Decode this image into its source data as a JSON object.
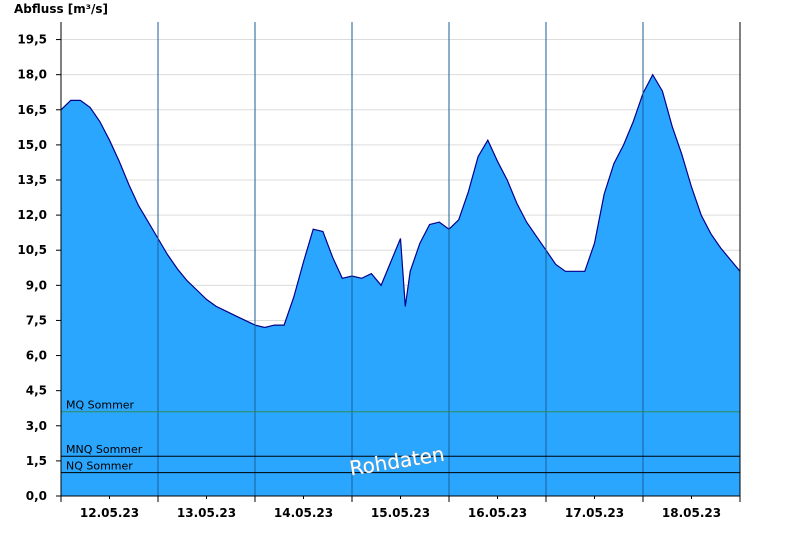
{
  "chart_data": {
    "type": "area",
    "ylabel": "Abfluss [m³/s]",
    "ylim": [
      0,
      20.25
    ],
    "y_ticks": [
      "0,0",
      "1,5",
      "3,0",
      "4,5",
      "6,0",
      "7,5",
      "9,0",
      "10,5",
      "12,0",
      "13,5",
      "15,0",
      "16,5",
      "18,0",
      "19,5"
    ],
    "x_range_days": [
      "11.05.23 12:00",
      "18.05.23 24:00"
    ],
    "x_ticks": [
      "12.05.23",
      "13.05.23",
      "14.05.23",
      "15.05.23",
      "16.05.23",
      "17.05.23",
      "18.05.23"
    ],
    "grid": true,
    "fill_color": "#2aa6ff",
    "line_color": "#00008b",
    "series": [
      {
        "x_days_since_first_day_start": [
          0.0,
          0.1,
          0.2,
          0.3,
          0.4,
          0.5,
          0.6,
          0.7,
          0.8,
          0.9,
          1.0,
          1.1,
          1.2,
          1.3,
          1.4,
          1.5,
          1.6,
          1.7,
          1.8,
          1.9,
          2.0,
          2.1,
          2.2,
          2.3,
          2.4,
          2.5,
          2.6,
          2.7,
          2.8,
          2.9,
          3.0,
          3.1,
          3.2,
          3.3,
          3.4,
          3.5,
          3.55,
          3.6,
          3.7,
          3.8,
          3.9,
          4.0,
          4.1,
          4.2,
          4.3,
          4.4,
          4.5,
          4.6,
          4.7,
          4.8,
          4.9,
          5.0,
          5.1,
          5.2,
          5.3,
          5.4,
          5.5,
          5.6,
          5.7,
          5.8,
          5.9,
          6.0,
          6.1,
          6.2,
          6.3,
          6.4,
          6.5,
          6.6,
          6.7,
          6.8,
          6.9,
          7.0
        ],
        "values": [
          16.5,
          16.9,
          16.9,
          16.6,
          16.0,
          15.2,
          14.3,
          13.3,
          12.4,
          11.7,
          11.0,
          10.3,
          9.7,
          9.2,
          8.8,
          8.4,
          8.1,
          7.9,
          7.7,
          7.5,
          7.3,
          7.2,
          7.3,
          7.3,
          8.5,
          10.0,
          11.4,
          11.3,
          10.2,
          9.3,
          9.4,
          9.3,
          9.5,
          9.0,
          10.0,
          11.0,
          8.1,
          9.6,
          10.8,
          11.6,
          11.7,
          11.4,
          11.8,
          13.0,
          14.5,
          15.2,
          14.3,
          13.5,
          12.5,
          11.7,
          11.1,
          10.5,
          9.9,
          9.6,
          9.6,
          9.6,
          10.8,
          12.9,
          14.2,
          15.0,
          16.0,
          17.2,
          18.0,
          17.3,
          15.8,
          14.6,
          13.2,
          12.0,
          11.2,
          10.6,
          10.1,
          9.6
        ]
      }
    ],
    "reference_lines": [
      {
        "label": "MQ Sommer",
        "value": 3.6,
        "color": "#2e8b57"
      },
      {
        "label": "MNQ Sommer",
        "value": 1.7,
        "color": "#000000"
      },
      {
        "label": "NQ Sommer",
        "value": 1.0,
        "color": "#000000"
      }
    ],
    "watermark": "Rohdaten"
  }
}
